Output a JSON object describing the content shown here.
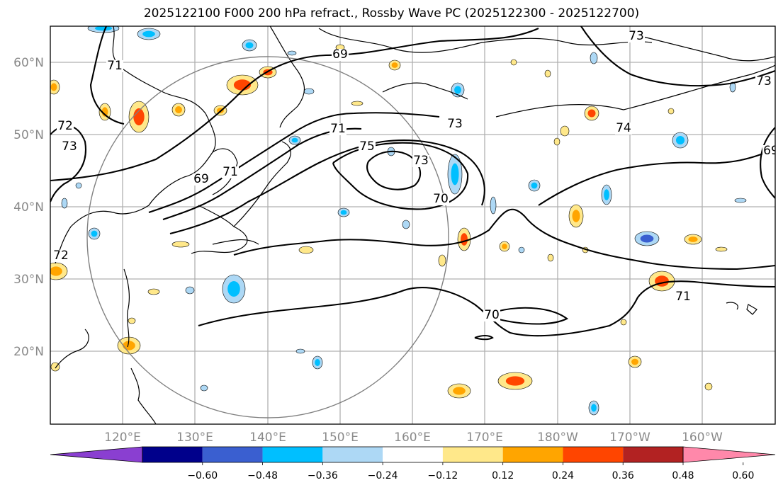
{
  "title": "2025122100 F000 200 hPa refract., Rossby Wave PC (2025122300 - 2025122700)",
  "lat_labels": [
    "60°N",
    "50°N",
    "40°N",
    "30°N",
    "20°N"
  ],
  "lon_labels": [
    "120°E",
    "130°E",
    "140°E",
    "150°E",
    "160°E",
    "170°E",
    "180°W",
    "170°W",
    "160°W"
  ],
  "contour_labels": [
    "69",
    "71",
    "72",
    "73",
    "74",
    "75",
    "73",
    "70",
    "71",
    "73",
    "72",
    "73",
    "71",
    "70",
    "69",
    "69",
    "73",
    "71"
  ],
  "colorbar": {
    "tick_labels": [
      "−0.60",
      "−0.48",
      "−0.36",
      "−0.24",
      "−0.12",
      "0.12",
      "0.24",
      "0.36",
      "0.48",
      "0.60"
    ],
    "colors": [
      "#8a3fd1",
      "#00008b",
      "#3a5fd0",
      "#00bfff",
      "#add8f5",
      "#ffffff",
      "#ffe88a",
      "#ffa500",
      "#ff4500",
      "#b22222",
      "#ff88aa"
    ]
  },
  "palette": {
    "neg_light": "#add8f5",
    "neg_mid": "#00bfff",
    "neg_strong": "#3a5fd0",
    "pos_light": "#ffe88a",
    "pos_mid": "#ffa500",
    "pos_strong": "#ff4500"
  }
}
